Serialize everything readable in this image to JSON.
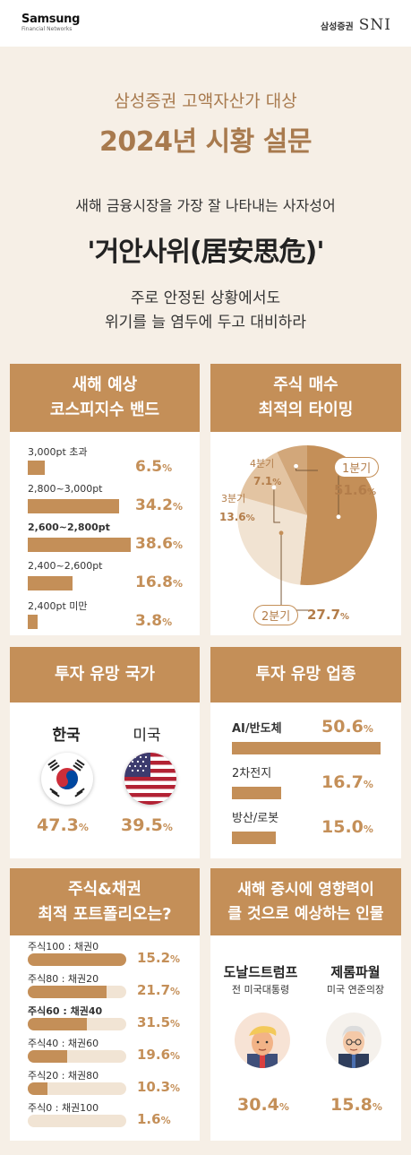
{
  "header": {
    "logo_line1": "Samsung",
    "logo_line2": "Financial Networks",
    "brand_ko": "삼성증권",
    "brand_en": "SNI"
  },
  "title": {
    "subtitle": "삼성증권 고액자산가 대상",
    "main": "2024년 시황 설문"
  },
  "idiom": {
    "question": "새해 금융시장을 가장 잘 나타내는 사자성어",
    "text": "'거안사위(居安思危)'",
    "meaning_1": "주로 안정된 상황에서도",
    "meaning_2": "위기를 늘 염두에 두고 대비하라"
  },
  "kospi": {
    "title_1": "새해 예상",
    "title_2": "코스피지수 밴드",
    "items": [
      {
        "label": "3,000pt 초과",
        "value": 6.5,
        "text": "6.5",
        "bold": false
      },
      {
        "label": "2,800~3,000pt",
        "value": 34.2,
        "text": "34.2",
        "bold": false
      },
      {
        "label": "2,600~2,800pt",
        "value": 38.6,
        "text": "38.6",
        "bold": true
      },
      {
        "label": "2,400~2,600pt",
        "value": 16.8,
        "text": "16.8",
        "bold": false
      },
      {
        "label": "2,400pt 미만",
        "value": 3.8,
        "text": "3.8",
        "bold": false
      }
    ]
  },
  "timing": {
    "title_1": "주식 매수",
    "title_2": "최적의 타이밍",
    "chart_data": {
      "type": "pie",
      "slices": [
        {
          "label": "1분기",
          "value": 51.6,
          "text": "51.6",
          "color": "#c48f58"
        },
        {
          "label": "2분기",
          "value": 27.7,
          "text": "27.7",
          "color": "#f1e3d2"
        },
        {
          "label": "3분기",
          "value": 13.6,
          "text": "13.6",
          "color": "#e3c4a2"
        },
        {
          "label": "4분기",
          "value": 7.1,
          "text": "7.1",
          "color": "#d2a77a"
        }
      ]
    }
  },
  "country": {
    "title": "투자 유망 국가",
    "items": [
      {
        "name": "한국",
        "value": "47.3",
        "flag": "korea-flag"
      },
      {
        "name": "미국",
        "value": "39.5",
        "flag": "usa-flag"
      }
    ]
  },
  "sector": {
    "title": "투자 유망 업종",
    "items": [
      {
        "label": "AI/반도체",
        "value": 50.6,
        "text": "50.6",
        "bold": true
      },
      {
        "label": "2차전지",
        "value": 16.7,
        "text": "16.7",
        "bold": false
      },
      {
        "label": "방산/로봇",
        "value": 15.0,
        "text": "15.0",
        "bold": false
      }
    ]
  },
  "portfolio": {
    "title_1": "주식&채권",
    "title_2": "최적 포트폴리오는?",
    "items": [
      {
        "label": "주식100 : 채권0",
        "value": 15.2,
        "text": "15.2",
        "stock": 100,
        "bold": false
      },
      {
        "label": "주식80 : 채권20",
        "value": 21.7,
        "text": "21.7",
        "stock": 80,
        "bold": false
      },
      {
        "label": "주식60 : 채권40",
        "value": 31.5,
        "text": "31.5",
        "stock": 60,
        "bold": true
      },
      {
        "label": "주식40 : 채권60",
        "value": 19.6,
        "text": "19.6",
        "stock": 40,
        "bold": false
      },
      {
        "label": "주식20 : 채권80",
        "value": 10.3,
        "text": "10.3",
        "stock": 20,
        "bold": false
      },
      {
        "label": "주식0 : 채권100",
        "value": 1.6,
        "text": "1.6",
        "stock": 0,
        "bold": false
      }
    ]
  },
  "person": {
    "title_1": "새해 증시에 영향력이",
    "title_2": "클 것으로 예상하는 인물",
    "items": [
      {
        "name": "도날드트럼프",
        "role": "전 미국대통령",
        "value": "30.4"
      },
      {
        "name": "제롬파월",
        "role": "미국 연준의장",
        "value": "15.8"
      }
    ]
  },
  "percent_sign": "%",
  "colors": {
    "accent": "#c48f58",
    "background": "#f6efe6",
    "track": "#f1e4d4"
  }
}
